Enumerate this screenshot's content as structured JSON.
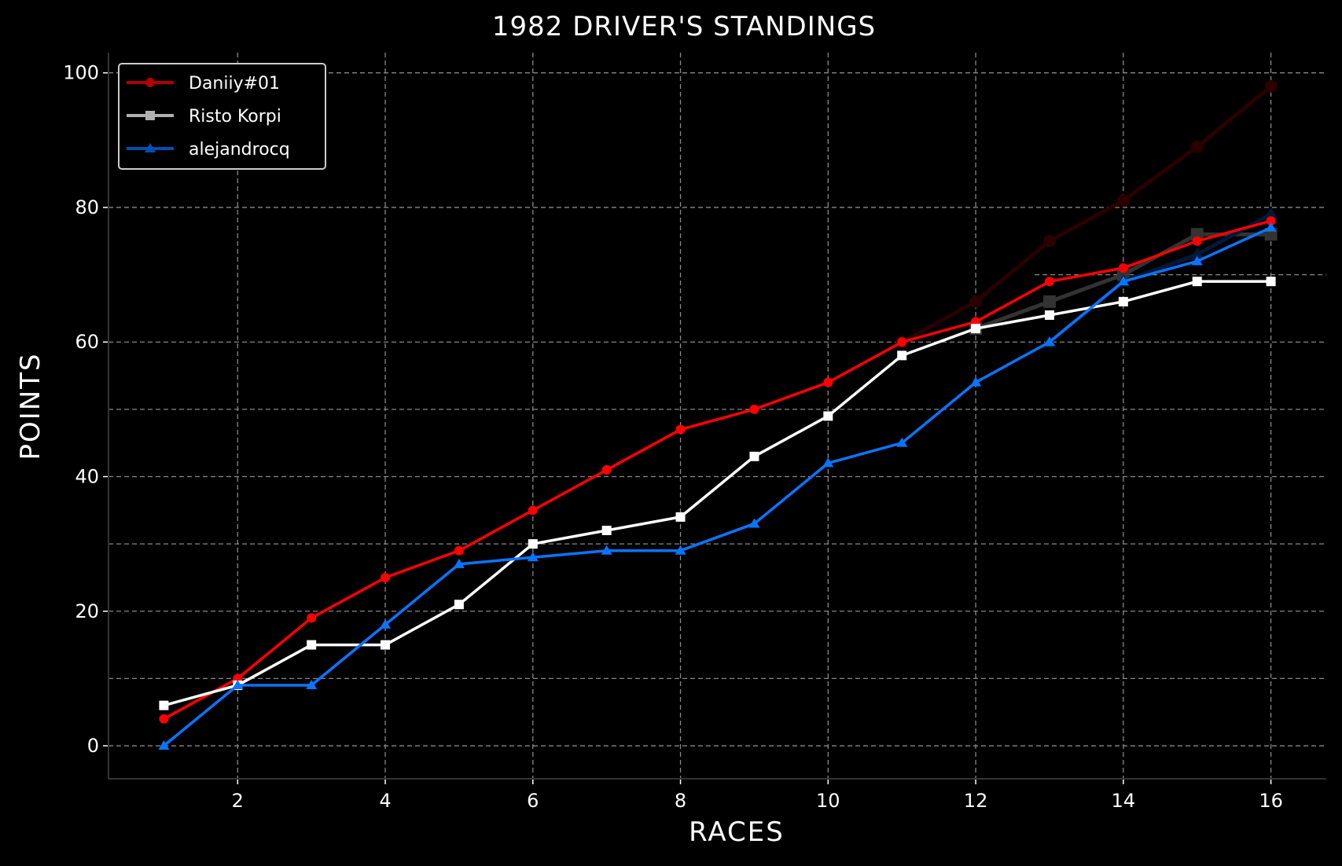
{
  "chart_data": {
    "type": "line",
    "title": "1982 DRIVER'S STANDINGS",
    "xlabel": "RACES",
    "ylabel": "POINTS",
    "xlim": [
      0.25,
      16.75
    ],
    "ylim": [
      -4.9,
      103
    ],
    "xticks": [
      2,
      4,
      6,
      8,
      10,
      12,
      14,
      16
    ],
    "yticks": [
      0,
      20,
      40,
      60,
      80,
      100
    ],
    "minor_grid_y": [
      10,
      30,
      50,
      70
    ],
    "grid": true,
    "legend_position": "top-left",
    "x": [
      1,
      2,
      3,
      4,
      5,
      6,
      7,
      8,
      9,
      10,
      11,
      12,
      13,
      14,
      15,
      16
    ],
    "series": [
      {
        "name": "Daniiy#01",
        "color": "#ff0000",
        "legend_color": "#b00000",
        "marker": "circle",
        "values": [
          4,
          10,
          19,
          25,
          29,
          35,
          41,
          47,
          50,
          54,
          60,
          63,
          69,
          71,
          75,
          78
        ]
      },
      {
        "name": "Risto Korpi",
        "color": "#ffffff",
        "legend_color": "#b0b0b0",
        "marker": "square",
        "values": [
          6,
          9,
          15,
          15,
          21,
          30,
          32,
          34,
          43,
          49,
          58,
          62,
          64,
          66,
          69,
          69
        ]
      },
      {
        "name": "alejandrocq",
        "color": "#0a74ff",
        "legend_color": "#0050b0",
        "marker": "triangle",
        "values": [
          0,
          9,
          9,
          18,
          27,
          28,
          29,
          29,
          33,
          42,
          45,
          54,
          60,
          69,
          72,
          77
        ]
      }
    ],
    "faded_series": [
      {
        "color": "#2a0000",
        "marker": "circle",
        "x": [
          11,
          12,
          13,
          14,
          15,
          16
        ],
        "values": [
          60,
          66,
          75,
          81,
          89,
          98
        ]
      },
      {
        "color": "#333333",
        "marker": "square",
        "x": [
          12,
          13,
          14,
          15,
          16
        ],
        "values": [
          62,
          66,
          70,
          76,
          76
        ]
      },
      {
        "color": "#00183a",
        "marker": "triangle",
        "x": [
          13,
          14,
          15,
          16
        ],
        "values": [
          60,
          69,
          73,
          79
        ]
      }
    ]
  }
}
